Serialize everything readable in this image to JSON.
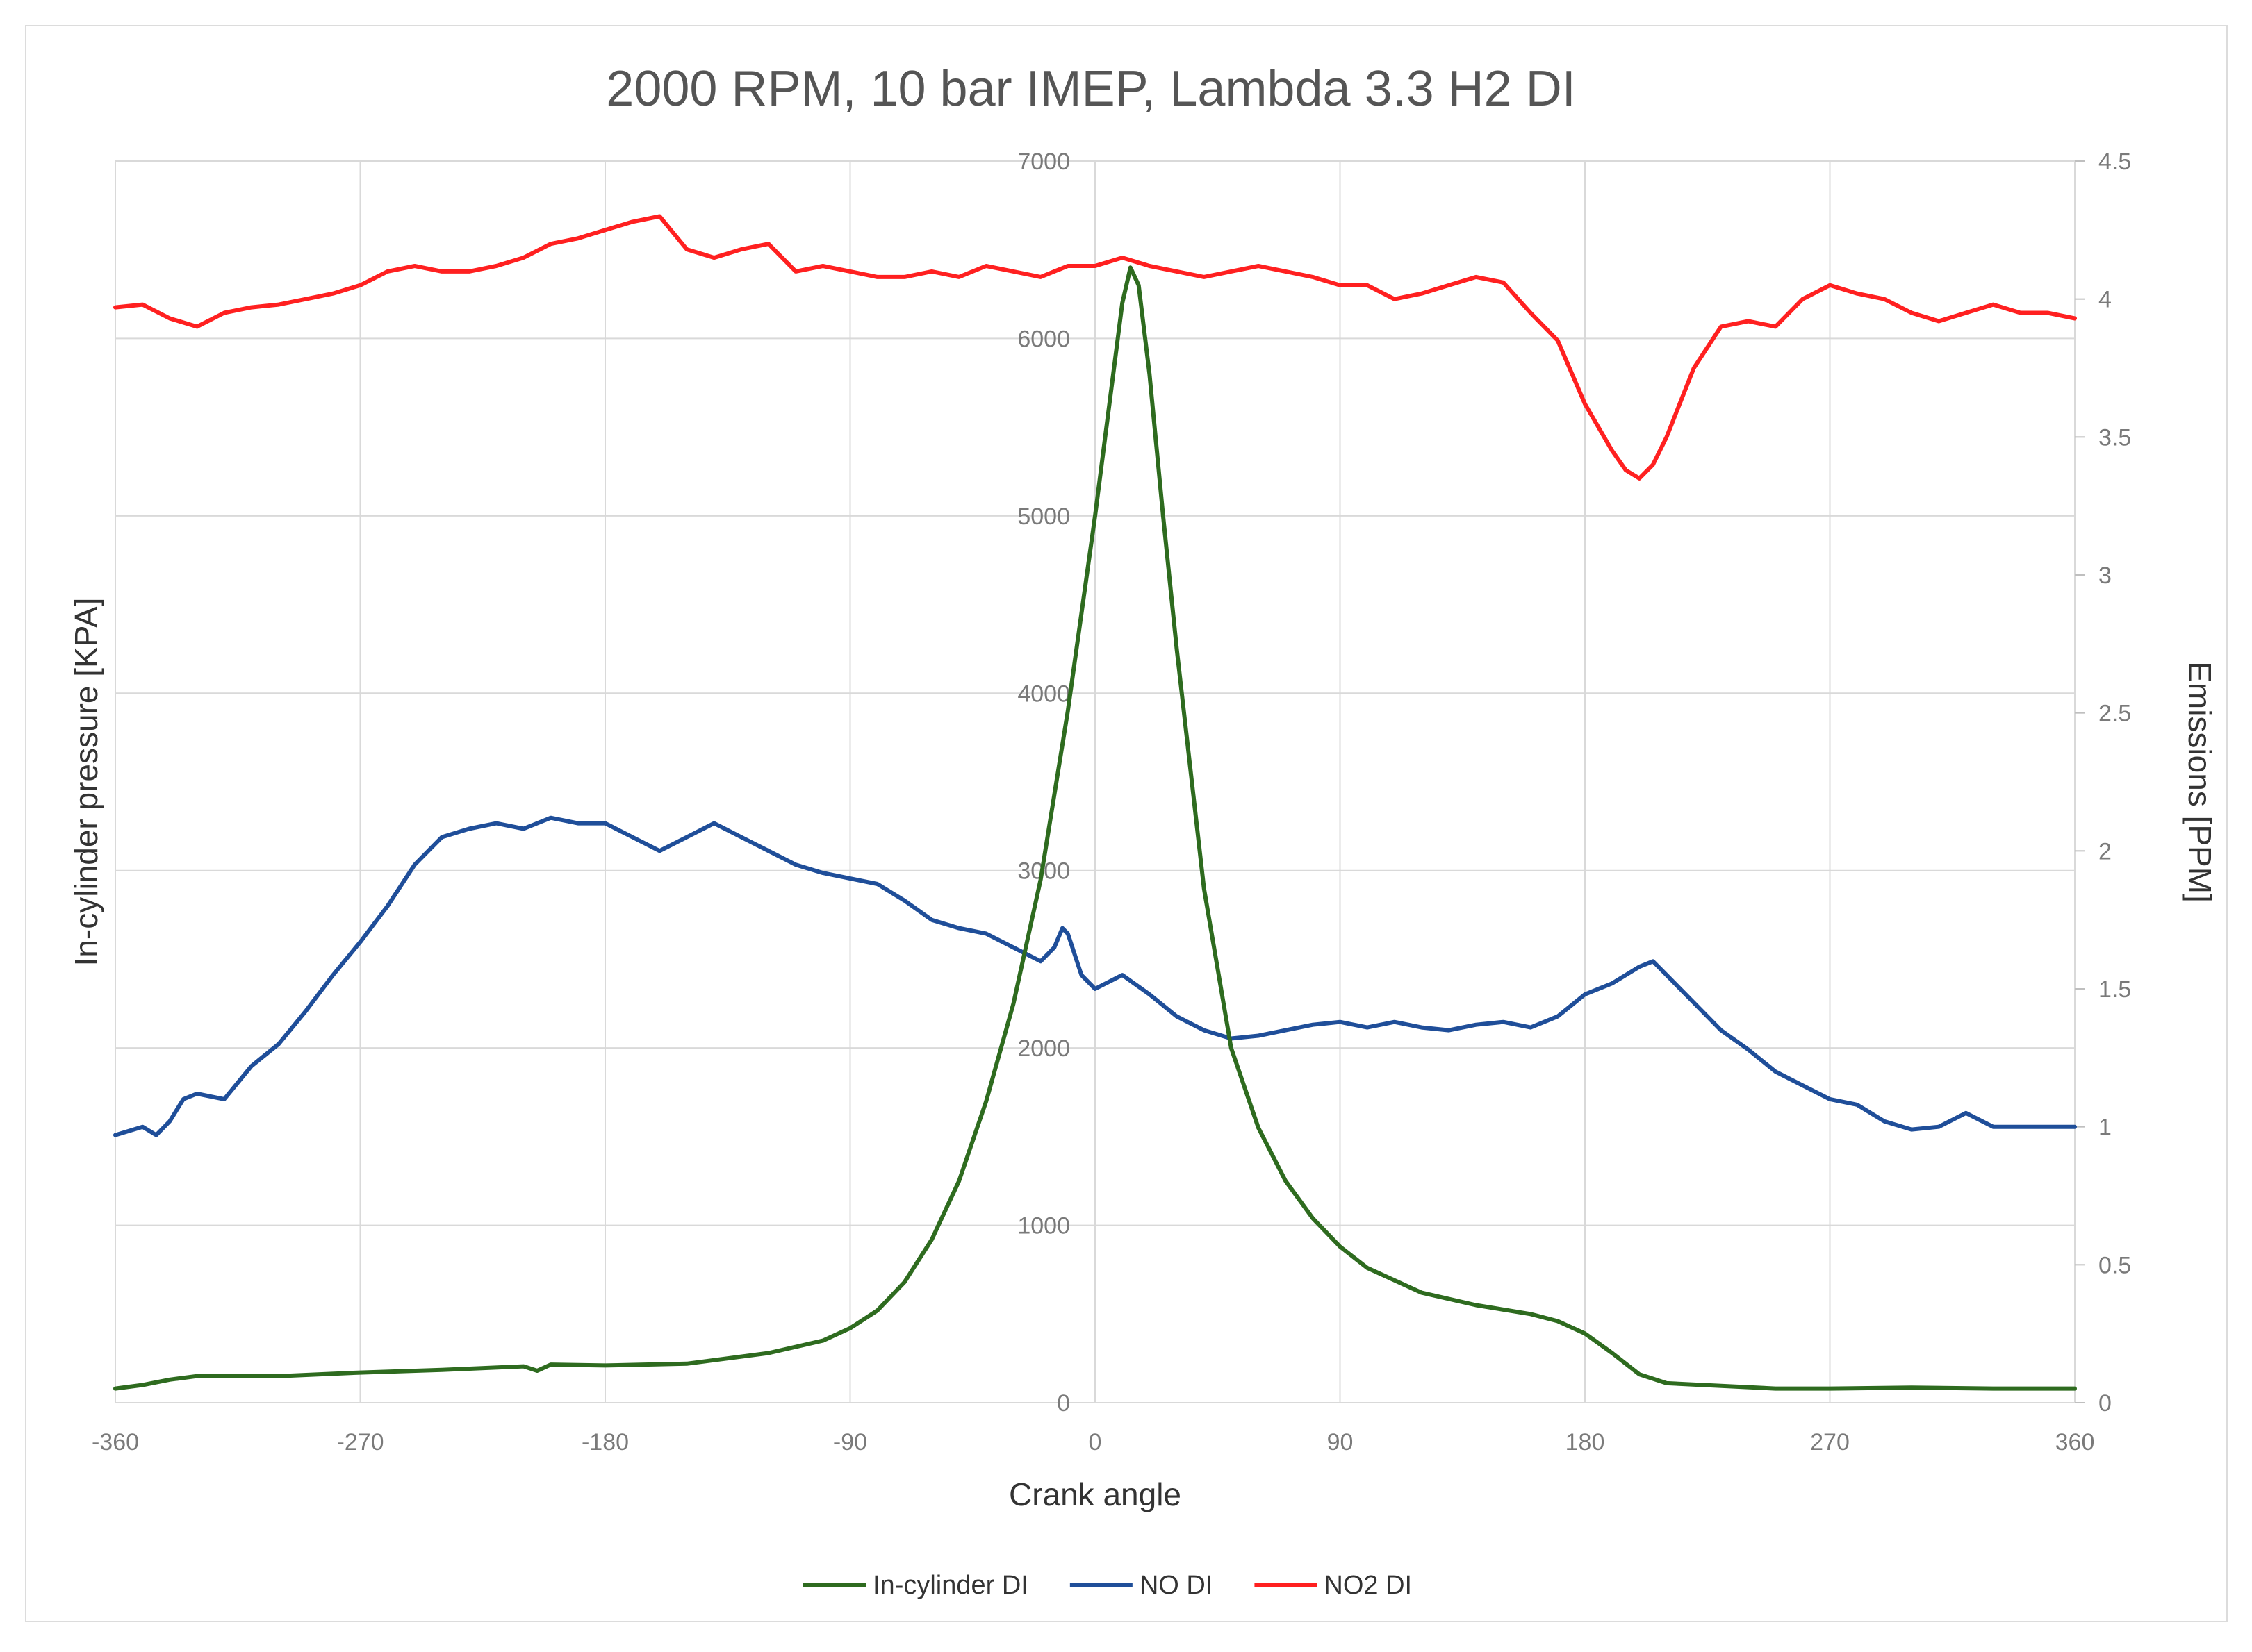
{
  "chart_data": {
    "type": "line",
    "title": "2000 RPM, 10 bar IMEP, Lambda 3.3 H2 DI",
    "xlabel": "Crank angle",
    "ylabel_left": "In-cylinder pressure [KPA]",
    "ylabel_right": "Emissions [PPM]",
    "xlim": [
      -360,
      360
    ],
    "ylim_left": [
      0,
      7000
    ],
    "ylim_right": [
      0,
      4.5
    ],
    "x_ticks": [
      "-360",
      "-270",
      "-180",
      "-90",
      "0",
      "90",
      "180",
      "270",
      "360"
    ],
    "y_left_ticks": [
      "0",
      "1000",
      "2000",
      "3000",
      "4000",
      "5000",
      "6000",
      "7000"
    ],
    "y_right_ticks": [
      "0",
      "0.5",
      "1",
      "1.5",
      "2",
      "2.5",
      "3",
      "3.5",
      "4",
      "4.5"
    ],
    "grid": true,
    "legend_position": "bottom",
    "series": [
      {
        "name": "In-cylinder DI",
        "axis": "left",
        "color": "#2e6b1f",
        "x": [
          -360,
          -350,
          -340,
          -330,
          -300,
          -270,
          -240,
          -210,
          -205,
          -200,
          -180,
          -150,
          -120,
          -100,
          -90,
          -80,
          -70,
          -60,
          -50,
          -40,
          -30,
          -20,
          -10,
          0,
          5,
          10,
          13,
          16,
          20,
          25,
          30,
          40,
          50,
          60,
          70,
          80,
          90,
          100,
          120,
          140,
          160,
          170,
          180,
          190,
          200,
          210,
          230,
          250,
          270,
          300,
          330,
          360
        ],
        "values": [
          80,
          100,
          130,
          150,
          150,
          170,
          185,
          205,
          180,
          215,
          210,
          220,
          280,
          350,
          420,
          520,
          680,
          920,
          1250,
          1700,
          2250,
          2950,
          3900,
          5000,
          5600,
          6200,
          6400,
          6300,
          5800,
          5000,
          4250,
          2900,
          2000,
          1550,
          1250,
          1040,
          880,
          760,
          620,
          550,
          500,
          460,
          390,
          280,
          160,
          110,
          95,
          80,
          80,
          85,
          80,
          80
        ]
      },
      {
        "name": "NO DI",
        "axis": "right",
        "color": "#1f4e99",
        "x": [
          -360,
          -350,
          -345,
          -340,
          -335,
          -330,
          -320,
          -310,
          -300,
          -290,
          -280,
          -270,
          -260,
          -250,
          -240,
          -230,
          -220,
          -210,
          -200,
          -190,
          -180,
          -170,
          -160,
          -150,
          -140,
          -130,
          -120,
          -110,
          -100,
          -90,
          -80,
          -70,
          -60,
          -50,
          -40,
          -30,
          -20,
          -15,
          -12,
          -10,
          -5,
          0,
          10,
          20,
          30,
          40,
          50,
          60,
          70,
          80,
          90,
          100,
          110,
          120,
          130,
          140,
          150,
          160,
          170,
          180,
          190,
          200,
          205,
          210,
          220,
          230,
          240,
          250,
          260,
          270,
          280,
          290,
          300,
          310,
          320,
          330,
          340,
          350,
          360
        ],
        "values": [
          0.97,
          1.0,
          0.97,
          1.02,
          1.1,
          1.12,
          1.1,
          1.22,
          1.3,
          1.42,
          1.55,
          1.67,
          1.8,
          1.95,
          2.05,
          2.08,
          2.1,
          2.08,
          2.12,
          2.1,
          2.1,
          2.05,
          2.0,
          2.05,
          2.1,
          2.05,
          2.0,
          1.95,
          1.92,
          1.9,
          1.88,
          1.82,
          1.75,
          1.72,
          1.7,
          1.65,
          1.6,
          1.65,
          1.72,
          1.7,
          1.55,
          1.5,
          1.55,
          1.48,
          1.4,
          1.35,
          1.32,
          1.33,
          1.35,
          1.37,
          1.38,
          1.36,
          1.38,
          1.36,
          1.35,
          1.37,
          1.38,
          1.36,
          1.4,
          1.48,
          1.52,
          1.58,
          1.6,
          1.55,
          1.45,
          1.35,
          1.28,
          1.2,
          1.15,
          1.1,
          1.08,
          1.02,
          0.99,
          1.0,
          1.05,
          1.0,
          1.0,
          1.0,
          1.0
        ]
      },
      {
        "name": "NO2 DI",
        "axis": "right",
        "color": "#ff2020",
        "x": [
          -360,
          -350,
          -340,
          -330,
          -320,
          -310,
          -300,
          -290,
          -280,
          -270,
          -260,
          -250,
          -240,
          -230,
          -220,
          -210,
          -200,
          -190,
          -180,
          -170,
          -160,
          -150,
          -140,
          -130,
          -120,
          -110,
          -100,
          -90,
          -80,
          -70,
          -60,
          -50,
          -40,
          -30,
          -20,
          -10,
          0,
          10,
          20,
          30,
          40,
          50,
          60,
          70,
          80,
          90,
          100,
          110,
          120,
          130,
          140,
          150,
          160,
          170,
          180,
          190,
          195,
          200,
          205,
          210,
          220,
          230,
          240,
          250,
          260,
          270,
          280,
          290,
          300,
          310,
          320,
          330,
          340,
          350,
          360
        ],
        "values": [
          3.97,
          3.98,
          3.93,
          3.9,
          3.95,
          3.97,
          3.98,
          4.0,
          4.02,
          4.05,
          4.1,
          4.12,
          4.1,
          4.1,
          4.12,
          4.15,
          4.2,
          4.22,
          4.25,
          4.28,
          4.3,
          4.18,
          4.15,
          4.18,
          4.2,
          4.1,
          4.12,
          4.1,
          4.08,
          4.08,
          4.1,
          4.08,
          4.12,
          4.1,
          4.08,
          4.12,
          4.12,
          4.15,
          4.12,
          4.1,
          4.08,
          4.1,
          4.12,
          4.1,
          4.08,
          4.05,
          4.05,
          4.0,
          4.02,
          4.05,
          4.08,
          4.06,
          3.95,
          3.85,
          3.62,
          3.45,
          3.38,
          3.35,
          3.4,
          3.5,
          3.75,
          3.9,
          3.92,
          3.9,
          4.0,
          4.05,
          4.02,
          4.0,
          3.95,
          3.92,
          3.95,
          3.98,
          3.95,
          3.95,
          3.93
        ]
      }
    ]
  }
}
